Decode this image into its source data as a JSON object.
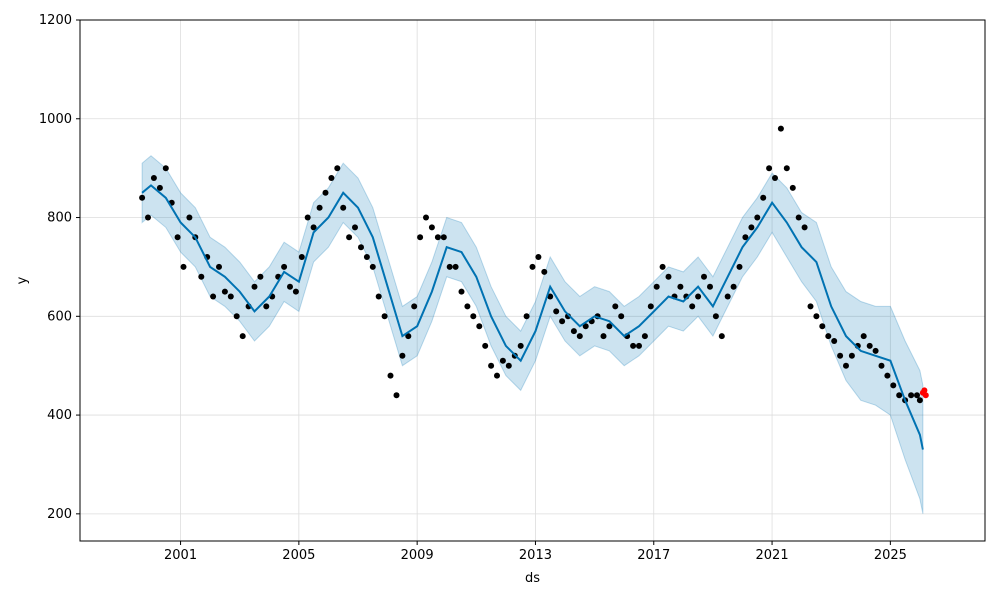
{
  "chart_data": {
    "type": "line",
    "title": "",
    "xlabel": "ds",
    "ylabel": "y",
    "xlim": [
      1997.6,
      2028.2
    ],
    "ylim": [
      145,
      1200
    ],
    "x_ticks": [
      2001,
      2005,
      2009,
      2013,
      2017,
      2021,
      2025
    ],
    "x_tick_labels": [
      "2001",
      "2005",
      "2009",
      "2013",
      "2017",
      "2021",
      "2025"
    ],
    "y_ticks": [
      200,
      400,
      600,
      800,
      1000,
      1200
    ],
    "y_tick_labels": [
      "200",
      "400",
      "600",
      "800",
      "1000",
      "1200"
    ],
    "grid": true,
    "legend": "none",
    "colors": {
      "actual": "#000000",
      "forecast_line": "#0072B2",
      "uncertainty": "#0072B2",
      "holdout": "#ff0000"
    },
    "forecast": {
      "x": [
        1999.7,
        2000.0,
        2000.5,
        2001.0,
        2001.5,
        2002.0,
        2002.5,
        2003.0,
        2003.5,
        2004.0,
        2004.5,
        2005.0,
        2005.5,
        2006.0,
        2006.5,
        2007.0,
        2007.5,
        2008.0,
        2008.5,
        2009.0,
        2009.5,
        2010.0,
        2010.5,
        2011.0,
        2011.5,
        2012.0,
        2012.5,
        2013.0,
        2013.5,
        2014.0,
        2014.5,
        2015.0,
        2015.5,
        2016.0,
        2016.5,
        2017.0,
        2017.5,
        2018.0,
        2018.5,
        2019.0,
        2019.5,
        2020.0,
        2020.5,
        2021.0,
        2021.5,
        2022.0,
        2022.5,
        2023.0,
        2023.5,
        2024.0,
        2024.5,
        2025.0,
        2025.5,
        2026.0,
        2026.1
      ],
      "yhat": [
        850,
        865,
        840,
        790,
        760,
        700,
        680,
        650,
        610,
        640,
        690,
        670,
        770,
        800,
        850,
        820,
        760,
        660,
        560,
        580,
        650,
        740,
        730,
        680,
        600,
        540,
        510,
        570,
        660,
        610,
        580,
        600,
        590,
        560,
        580,
        610,
        640,
        630,
        660,
        620,
        680,
        740,
        780,
        830,
        790,
        740,
        710,
        620,
        560,
        530,
        520,
        510,
        430,
        360,
        330
      ],
      "upper": [
        910,
        925,
        900,
        850,
        820,
        760,
        740,
        710,
        670,
        700,
        750,
        730,
        830,
        860,
        910,
        880,
        820,
        720,
        620,
        640,
        710,
        800,
        790,
        740,
        660,
        600,
        570,
        630,
        720,
        670,
        640,
        660,
        650,
        620,
        640,
        670,
        700,
        690,
        720,
        680,
        740,
        800,
        840,
        890,
        860,
        810,
        790,
        700,
        650,
        630,
        620,
        620,
        550,
        490,
        460
      ],
      "lower": [
        790,
        805,
        780,
        730,
        700,
        640,
        620,
        590,
        550,
        580,
        630,
        610,
        710,
        740,
        790,
        760,
        700,
        600,
        500,
        520,
        590,
        680,
        670,
        620,
        540,
        480,
        450,
        510,
        600,
        550,
        520,
        540,
        530,
        500,
        520,
        550,
        580,
        570,
        600,
        560,
        620,
        680,
        720,
        770,
        720,
        670,
        630,
        540,
        470,
        430,
        420,
        400,
        310,
        230,
        200
      ]
    },
    "actual": {
      "x": [
        1999.7,
        1999.9,
        2000.1,
        2000.3,
        2000.5,
        2000.7,
        2000.9,
        2001.1,
        2001.3,
        2001.5,
        2001.7,
        2001.9,
        2002.1,
        2002.3,
        2002.5,
        2002.7,
        2002.9,
        2003.1,
        2003.3,
        2003.5,
        2003.7,
        2003.9,
        2004.1,
        2004.3,
        2004.5,
        2004.7,
        2004.9,
        2005.1,
        2005.3,
        2005.5,
        2005.7,
        2005.9,
        2006.1,
        2006.3,
        2006.5,
        2006.7,
        2006.9,
        2007.1,
        2007.3,
        2007.5,
        2007.7,
        2007.9,
        2008.1,
        2008.3,
        2008.5,
        2008.7,
        2008.9,
        2009.1,
        2009.3,
        2009.5,
        2009.7,
        2009.9,
        2010.1,
        2010.3,
        2010.5,
        2010.7,
        2010.9,
        2011.1,
        2011.3,
        2011.5,
        2011.7,
        2011.9,
        2012.1,
        2012.3,
        2012.5,
        2012.7,
        2012.9,
        2013.1,
        2013.3,
        2013.5,
        2013.7,
        2013.9,
        2014.1,
        2014.3,
        2014.5,
        2014.7,
        2014.9,
        2015.1,
        2015.3,
        2015.5,
        2015.7,
        2015.9,
        2016.1,
        2016.3,
        2016.5,
        2016.7,
        2016.9,
        2017.1,
        2017.3,
        2017.5,
        2017.7,
        2017.9,
        2018.1,
        2018.3,
        2018.5,
        2018.7,
        2018.9,
        2019.1,
        2019.3,
        2019.5,
        2019.7,
        2019.9,
        2020.1,
        2020.3,
        2020.5,
        2020.7,
        2020.9,
        2021.1,
        2021.3,
        2021.5,
        2021.7,
        2021.9,
        2022.1,
        2022.3,
        2022.5,
        2022.7,
        2022.9,
        2023.1,
        2023.3,
        2023.5,
        2023.7,
        2023.9,
        2024.1,
        2024.3,
        2024.5,
        2024.7,
        2024.9,
        2025.1,
        2025.3,
        2025.5,
        2025.7,
        2025.9,
        2026.0
      ],
      "y": [
        840,
        800,
        880,
        860,
        900,
        830,
        760,
        700,
        800,
        760,
        680,
        720,
        640,
        700,
        650,
        640,
        600,
        560,
        620,
        660,
        680,
        620,
        640,
        680,
        700,
        660,
        650,
        720,
        800,
        780,
        820,
        850,
        880,
        900,
        820,
        760,
        780,
        740,
        720,
        700,
        640,
        600,
        480,
        440,
        520,
        560,
        620,
        760,
        800,
        780,
        760,
        760,
        700,
        700,
        650,
        620,
        600,
        580,
        540,
        500,
        480,
        510,
        500,
        520,
        540,
        600,
        700,
        720,
        690,
        640,
        610,
        590,
        600,
        570,
        560,
        580,
        590,
        600,
        560,
        580,
        620,
        600,
        560,
        540,
        540,
        560,
        620,
        660,
        700,
        680,
        640,
        660,
        640,
        620,
        640,
        680,
        660,
        600,
        560,
        640,
        660,
        700,
        760,
        780,
        800,
        840,
        900,
        880,
        980,
        900,
        860,
        800,
        780,
        620,
        600,
        580,
        560,
        550,
        520,
        500,
        520,
        540,
        560,
        540,
        530,
        500,
        480,
        460,
        440,
        430,
        440,
        440,
        430
      ]
    },
    "holdout": {
      "x": [
        2026.1,
        2026.15,
        2026.2
      ],
      "y": [
        445,
        450,
        440
      ]
    }
  }
}
